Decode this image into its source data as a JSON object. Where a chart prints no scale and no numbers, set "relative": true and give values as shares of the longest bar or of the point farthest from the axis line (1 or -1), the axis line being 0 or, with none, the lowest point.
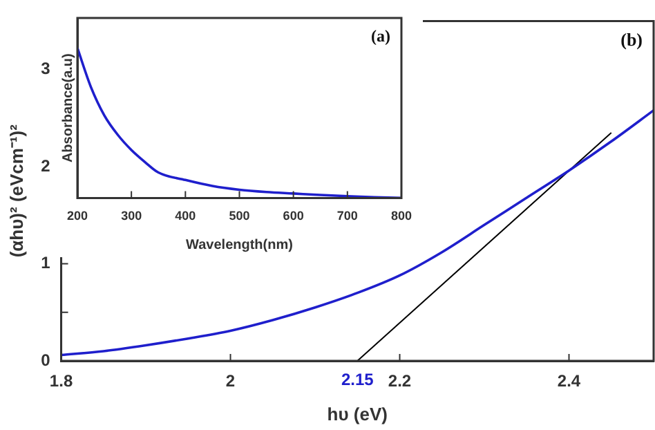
{
  "chart_data": [
    {
      "type": "line",
      "xlabel": "hυ (eV)",
      "ylabel": "(αhυ)² (eVcm⁻¹)²",
      "xlim": [
        1.8,
        2.5
      ],
      "xticks": [
        1.8,
        2,
        2.2,
        2.4
      ],
      "ylim": [
        0,
        3.5
      ],
      "yticks": [
        0,
        {
          "value": 0.5,
          "label": null
        },
        1,
        {
          "value": 1.5,
          "label": null
        },
        2,
        {
          "value": 2.5,
          "label": null
        },
        3
      ],
      "x": [
        1.8,
        1.85,
        1.9,
        1.95,
        2.0,
        2.05,
        2.1,
        2.15,
        2.2,
        2.25,
        2.3,
        2.35,
        2.4,
        2.45,
        2.5
      ],
      "series": [
        {
          "color": "#1f1fcc",
          "values": [
            0.06,
            0.1,
            0.16,
            0.23,
            0.31,
            0.42,
            0.55,
            0.7,
            0.88,
            1.12,
            1.4,
            1.68,
            1.96,
            2.26,
            2.58
          ]
        },
        {
          "type": "line",
          "color": "#000000",
          "x": [
            2.15,
            2.45
          ],
          "values": [
            0,
            2.35
          ]
        }
      ],
      "annotations": [
        "(b)",
        {
          "text": "2.15",
          "x": 2.15,
          "y": 0
        }
      ]
    },
    {
      "type": "line",
      "xlabel": "Wavelength(nm)",
      "ylabel": "Absorbance(a.u)",
      "relative": true,
      "tick_labels": "x",
      "xlim": [
        200,
        800
      ],
      "xticks": [
        200,
        300,
        400,
        500,
        600,
        700,
        800
      ],
      "x": [
        200,
        225,
        250,
        275,
        300,
        325,
        350,
        400,
        450,
        500,
        550,
        600,
        650,
        700,
        750,
        800
      ],
      "series": [
        {
          "color": "#1f1fcc",
          "values": [
            1,
            0.74,
            0.55,
            0.42,
            0.32,
            0.24,
            0.17,
            0.12,
            0.08,
            0.055,
            0.04,
            0.03,
            0.02,
            0.012,
            0.005,
            0
          ]
        }
      ],
      "annotations": [
        "(a)"
      ]
    }
  ]
}
